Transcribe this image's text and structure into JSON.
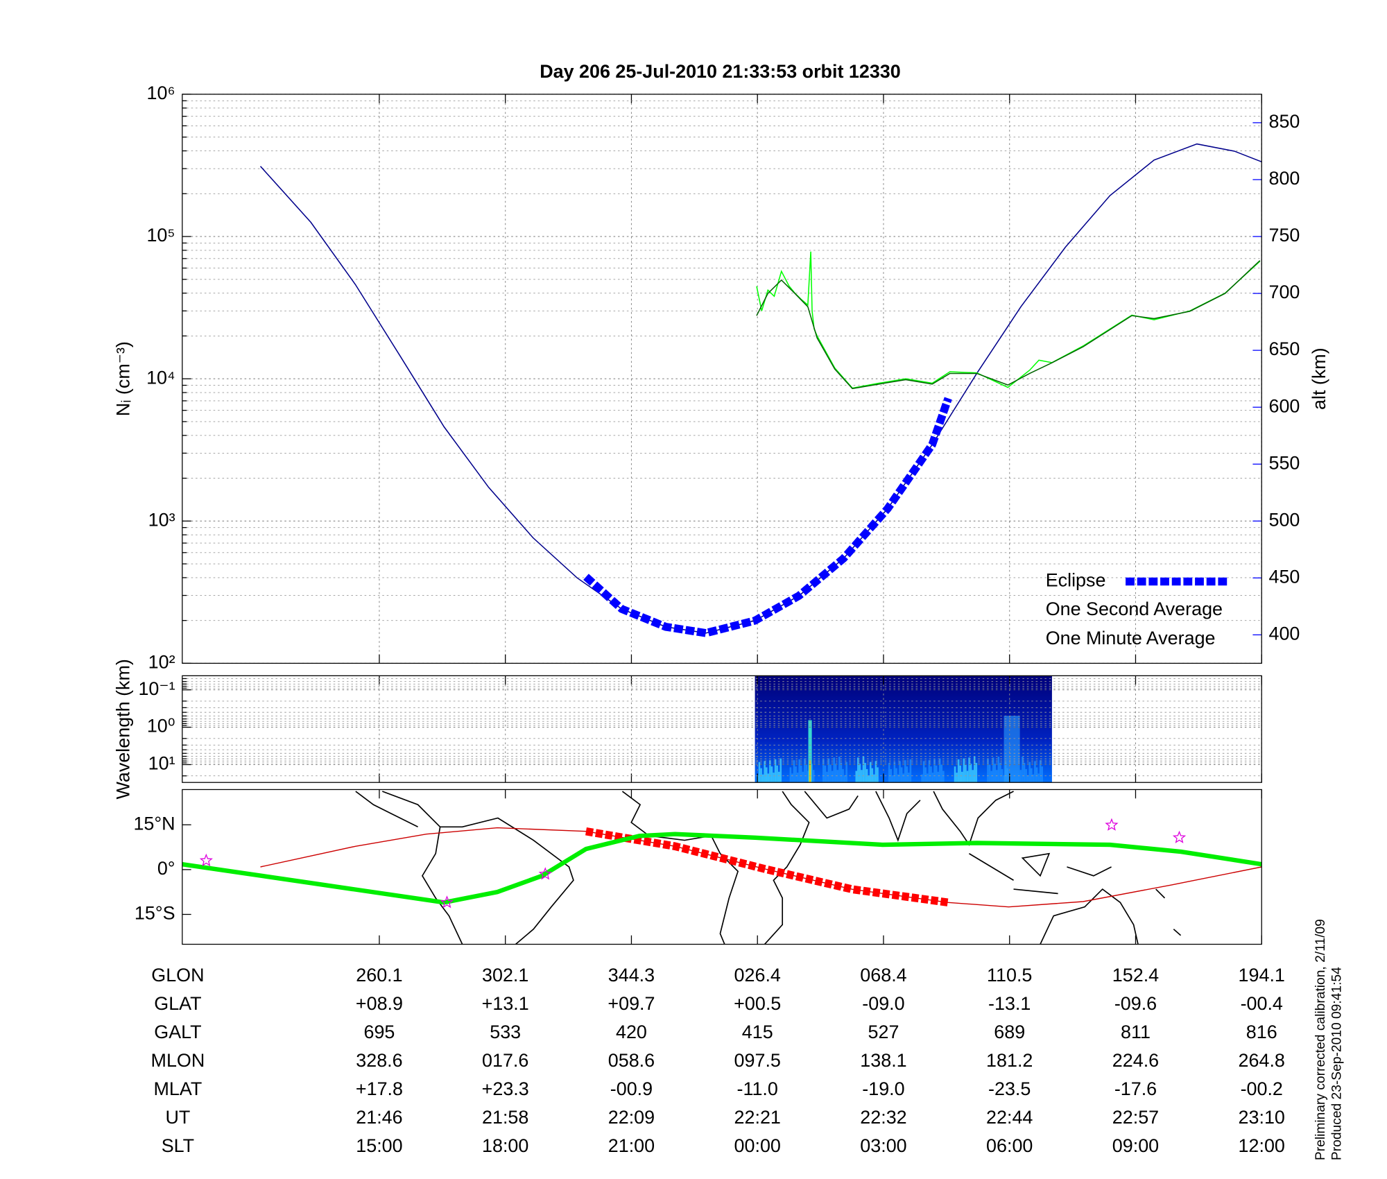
{
  "chart_data": [
    {
      "type": "line",
      "title": "Day 206  25-Jul-2010 21:33:53   orbit 12330",
      "ylabel": "Nᵢ (cm⁻³)",
      "y2label": "alt (km)",
      "xlabel": "SLT",
      "log": true,
      "grid": true,
      "legend": "lower right",
      "xlim": [
        10.31,
        36
      ],
      "xticks": [
        {
          "value": 15,
          "label": "15:00"
        },
        {
          "value": 18,
          "label": "18:00"
        },
        {
          "value": 21,
          "label": "21:00"
        },
        {
          "value": 24,
          "label": "00:00"
        },
        {
          "value": 27,
          "label": "03:00"
        },
        {
          "value": 30,
          "label": "06:00"
        },
        {
          "value": 33,
          "label": "09:00"
        },
        {
          "value": 36,
          "label": "12:00"
        }
      ],
      "ylim": [
        100,
        1000000
      ],
      "yticks": [
        {
          "value": 100,
          "label": "10²"
        },
        {
          "value": 1000,
          "label": "10³"
        },
        {
          "value": 10000,
          "label": "10⁴"
        },
        {
          "value": 100000,
          "label": "10⁵"
        },
        {
          "value": 1000000,
          "label": "10⁶"
        }
      ],
      "yminorticks": [
        200,
        300,
        400,
        500,
        600,
        700,
        800,
        900,
        2000,
        3000,
        4000,
        5000,
        6000,
        7000,
        8000,
        9000,
        20000,
        30000,
        40000,
        50000,
        60000,
        70000,
        80000,
        90000,
        200000,
        300000,
        400000,
        500000,
        600000,
        700000,
        800000,
        900000
      ],
      "y2lim": [
        375,
        875
      ],
      "y2ticks": [
        400,
        450,
        500,
        550,
        600,
        650,
        700,
        750,
        800,
        850
      ],
      "y2color": "#0000ff",
      "series": [
        {
          "axis": "y2",
          "color": "#00008b",
          "x": [
            12.17,
            13.37,
            14.43,
            15.49,
            16.54,
            17.6,
            18.66,
            19.71,
            20.77,
            21.82,
            22.77,
            23.94,
            24.99,
            26.05,
            27.1,
            28.16,
            29.22,
            30.27,
            31.33,
            32.39,
            33.44,
            34.46,
            35.35,
            36
          ],
          "values": [
            811.7,
            762.5,
            707.8,
            645.3,
            582.8,
            529.7,
            485.2,
            450,
            422.7,
            407,
            401.6,
            412.5,
            434.4,
            467.2,
            510.9,
            567.2,
            629.7,
            688.3,
            740.6,
            785.9,
            817.2,
            831.3,
            825,
            815.6
          ]
        },
        {
          "name": "Eclipse",
          "axis": "y2",
          "color": "#0000ff",
          "style": "dashed",
          "x": [
            19.92,
            20.77,
            21.82,
            22.77,
            23.94,
            24.99,
            26.05,
            27.1,
            28.16,
            28.54
          ],
          "values": [
            451,
            422.7,
            407,
            401.6,
            412.5,
            434.4,
            467.2,
            510.9,
            567.2,
            607.8
          ]
        },
        {
          "name": "One Second Average",
          "color": "#00ff00",
          "x": [
            23.98,
            24.1,
            24.25,
            24.4,
            24.57,
            24.75,
            24.89,
            25.05,
            25.2,
            25.27,
            25.3,
            25.35,
            25.42,
            25.84,
            26.26,
            26.89,
            27.53,
            28.16,
            28.58,
            29.22,
            29.96,
            30.48,
            30.7,
            31.01,
            31.75,
            32.91,
            33.44,
            34.29,
            35.13,
            35.96
          ],
          "values": [
            44700,
            30000,
            42000,
            38000,
            57000,
            45000,
            40000,
            36000,
            33000,
            78300,
            30000,
            22400,
            20000,
            11900,
            8600,
            9300,
            10000,
            9300,
            11200,
            11000,
            8700,
            11500,
            13500,
            13000,
            17000,
            28000,
            26000,
            30000,
            40000,
            67000
          ]
        },
        {
          "name": "One Minute Average",
          "color": "#000000",
          "line_color": "#006400",
          "x": [
            23.98,
            24.25,
            24.57,
            24.89,
            25.2,
            25.42,
            25.84,
            26.26,
            26.89,
            27.53,
            28.16,
            28.58,
            29.22,
            29.96,
            30.48,
            31.01,
            31.75,
            32.91,
            33.44,
            34.29,
            35.13,
            35.96
          ],
          "values": [
            27800,
            39800,
            49400,
            39800,
            32100,
            19400,
            11700,
            8530,
            9170,
            9860,
            9170,
            10900,
            10900,
            9040,
            10900,
            12960,
            16800,
            27800,
            26500,
            29800,
            39800,
            67800
          ]
        }
      ]
    },
    {
      "type": "image",
      "ylabel": "Wavelength (km)",
      "log": true,
      "y_reversed": true,
      "grid": true,
      "ylim": [
        0.042,
        30
      ],
      "yticks": [
        {
          "value": 0.1,
          "label": "10⁻¹"
        },
        {
          "value": 1,
          "label": "10⁰"
        },
        {
          "value": 10,
          "label": "10¹"
        }
      ],
      "yminorticks": [
        0.05,
        0.06,
        0.07,
        0.08,
        0.09,
        0.2,
        0.3,
        0.4,
        0.5,
        0.6,
        0.7,
        0.8,
        0.9,
        2,
        3,
        4,
        5,
        6,
        7,
        8,
        9,
        20
      ],
      "image_x": [
        23.94,
        31.01
      ]
    },
    {
      "type": "map",
      "ylim": [
        -25,
        26.8
      ],
      "yticks": [
        {
          "value": 15,
          "label": "15°N"
        },
        {
          "value": 0,
          "label": "0°"
        },
        {
          "value": -15,
          "label": "15°S"
        }
      ],
      "series": [
        {
          "color": "#cc0000",
          "x": [
            12.17,
            14.43,
            16.12,
            17.81,
            19.92,
            22.04,
            24.15,
            26.26,
            28.54,
            29.98,
            31.75,
            33.86,
            36
          ],
          "values": [
            0.9,
            7.8,
            11.9,
            14,
            12.8,
            7.8,
            0.3,
            -6.6,
            -11,
            -12.5,
            -10.7,
            -5.1,
            0.9
          ]
        },
        {
          "color": "#ff0000",
          "style": "dashed",
          "x": [
            19.92,
            22.04,
            24.15,
            26.26,
            28.54
          ],
          "values": [
            12.8,
            7.8,
            0.3,
            -6.6,
            -11
          ]
        },
        {
          "color": "#00ee00",
          "style": "thick",
          "x": [
            10.31,
            13.37,
            16.54,
            17.81,
            18.87,
            19.92,
            21.19,
            22.04,
            23.94,
            26.98,
            29.22,
            32.39,
            34.08,
            36
          ],
          "values": [
            1.8,
            -4.5,
            -11,
            -7.5,
            -2.1,
            6.9,
            11.3,
            11.9,
            10.7,
            8.3,
            8.9,
            8.3,
            6,
            1.8
          ]
        }
      ],
      "points": {
        "color": "#dd00dd",
        "x": [
          10.88,
          16.61,
          18.95,
          32.43,
          34.04
        ],
        "values": [
          3,
          -11,
          -1.5,
          14.9,
          10.7
        ]
      }
    }
  ],
  "table": {
    "rows": [
      {
        "label": "GLON",
        "cells": [
          "260.1",
          "302.1",
          "344.3",
          "026.4",
          "068.4",
          "110.5",
          "152.4",
          "194.1"
        ]
      },
      {
        "label": "GLAT",
        "cells": [
          "+08.9",
          "+13.1",
          "+09.7",
          "+00.5",
          "-09.0",
          "-13.1",
          "-09.6",
          "-00.4"
        ]
      },
      {
        "label": "GALT",
        "cells": [
          "695",
          "533",
          "420",
          "415",
          "527",
          "689",
          "811",
          "816"
        ]
      },
      {
        "label": "MLON",
        "cells": [
          "328.6",
          "017.6",
          "058.6",
          "097.5",
          "138.1",
          "181.2",
          "224.6",
          "264.8"
        ]
      },
      {
        "label": "MLAT",
        "cells": [
          "+17.8",
          "+23.3",
          "-00.9",
          "-11.0",
          "-19.0",
          "-23.5",
          "-17.6",
          "-00.2"
        ]
      },
      {
        "label": "UT",
        "cells": [
          "21:46",
          "21:58",
          "22:09",
          "22:21",
          "22:32",
          "22:44",
          "22:57",
          "23:10"
        ]
      }
    ]
  },
  "footnotes": [
    "Preliminary corrected calibration, 2/11/09",
    "Produced 23-Sep-2010 09:41:54"
  ]
}
